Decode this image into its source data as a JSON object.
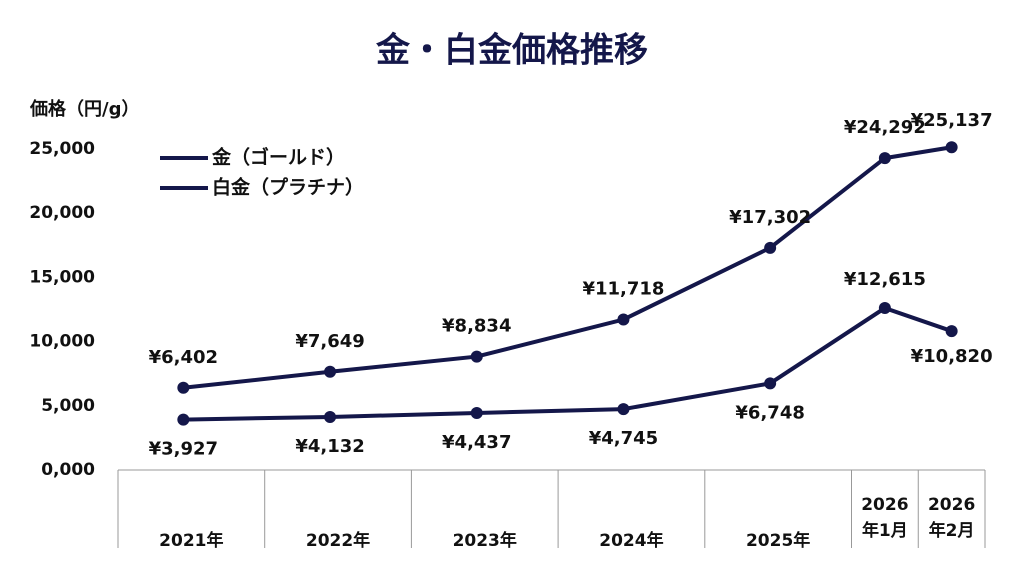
{
  "chart_data": {
    "type": "line",
    "title": "金・白金価格推移",
    "y_label": "価格（円/g）",
    "categories": [
      "2021年",
      "2022年",
      "2023年",
      "2024年",
      "2025年",
      "2026年1月",
      "2026年2月"
    ],
    "series": [
      {
        "name": "金（ゴールド）",
        "color": "#14174a",
        "values": [
          6402,
          7649,
          8834,
          11718,
          17302,
          24292,
          25137
        ],
        "value_labels": [
          "¥6,402",
          "¥7,649",
          "¥8,834",
          "¥11,718",
          "¥17,302",
          "¥24,292",
          "¥25,137"
        ]
      },
      {
        "name": "白金（プラチナ）",
        "color": "#14174a",
        "values": [
          3927,
          4132,
          4437,
          4745,
          6748,
          12615,
          10820
        ],
        "value_labels": [
          "¥3,927",
          "¥4,132",
          "¥4,437",
          "¥4,745",
          "¥6,748",
          "¥12,615",
          "¥10,820"
        ]
      }
    ],
    "ylim": [
      0,
      25000
    ],
    "yticks": [
      {
        "value": 0,
        "label": "0,000"
      },
      {
        "value": 5000,
        "label": "5,000"
      },
      {
        "value": 10000,
        "label": "10,000"
      },
      {
        "value": 15000,
        "label": "15,000"
      },
      {
        "value": 20000,
        "label": "20,000"
      },
      {
        "value": 25000,
        "label": "25,000"
      }
    ],
    "grid": false,
    "legend": "top-left"
  }
}
